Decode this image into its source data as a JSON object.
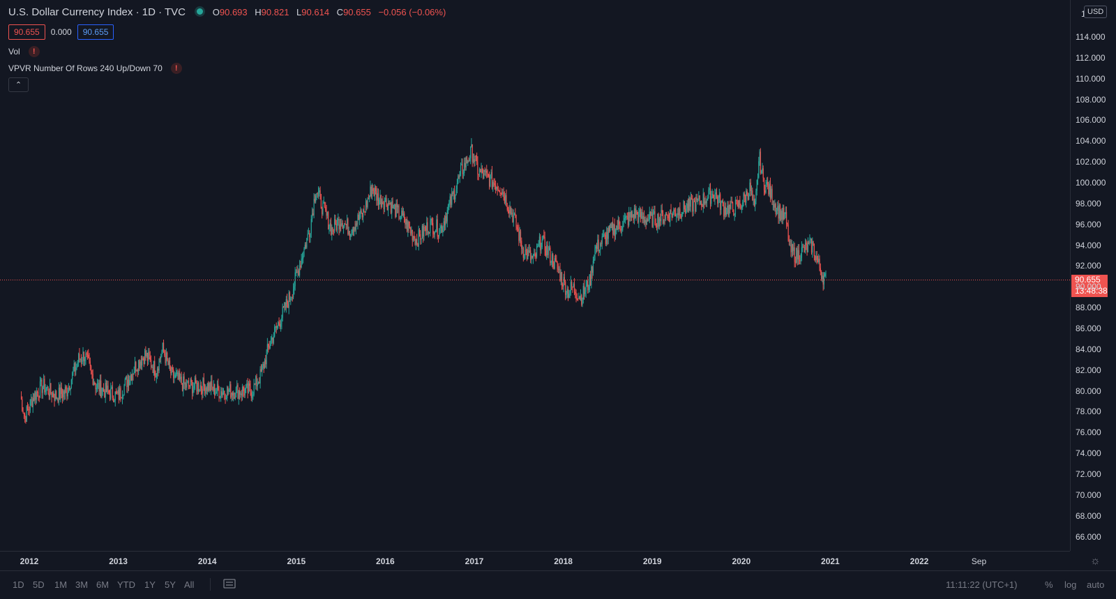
{
  "header": {
    "title": "U.S. Dollar Currency Index · 1D · TVC",
    "ohlc": {
      "o_label": "O",
      "o_value": "90.693",
      "h_label": "H",
      "h_value": "90.821",
      "l_label": "L",
      "l_value": "90.614",
      "c_label": "C",
      "c_value": "90.655",
      "change": "−0.056 (−0.06%)"
    },
    "bid": "90.655",
    "spread": "0.000",
    "ask": "90.655",
    "indicator_vol": "Vol",
    "indicator_vpvr": "VPVR Number Of Rows 240 Up/Down 70",
    "warn_symbol": "!",
    "collapse_symbol": "⌃"
  },
  "price_axis": {
    "currency": "USD",
    "top_partial": "1",
    "ticks": [
      "114.000",
      "112.000",
      "110.000",
      "108.000",
      "106.000",
      "104.000",
      "102.000",
      "100.000",
      "98.000",
      "96.000",
      "94.000",
      "92.000",
      "90.000",
      "88.000",
      "86.000",
      "84.000",
      "82.000",
      "80.000",
      "78.000",
      "76.000",
      "74.000",
      "72.000",
      "70.000",
      "68.000",
      "66.000"
    ],
    "last_price": "90.655",
    "countdown": "13:48:38"
  },
  "time_axis": {
    "labels": [
      "2012",
      "2013",
      "2014",
      "2015",
      "2016",
      "2017",
      "2018",
      "2019",
      "2020",
      "2021",
      "2022",
      "Sep"
    ]
  },
  "bottom_bar": {
    "timeframes": [
      "1D",
      "5D",
      "1M",
      "3M",
      "6M",
      "YTD",
      "1Y",
      "5Y",
      "All"
    ],
    "clock": "11:11:22 (UTC+1)",
    "percent": "%",
    "log": "log",
    "auto": "auto"
  },
  "colors": {
    "background": "#131722",
    "up": "#26a69a",
    "down": "#ef5350",
    "text": "#d1d4dc",
    "grid": "#2a2e39"
  },
  "chart_data": {
    "type": "line",
    "title": "U.S. Dollar Currency Index · 1D · TVC",
    "xlabel": "",
    "ylabel": "",
    "grid": false,
    "legend": "top-left",
    "ylim": [
      65.0,
      116.0
    ],
    "xlim": [
      2011.9,
      2023.0
    ],
    "series": [
      {
        "name": "U.S. Dollar Currency Index",
        "x": [
          2011.9,
          2011.95,
          2012.05,
          2012.15,
          2012.3,
          2012.42,
          2012.55,
          2012.62,
          2012.75,
          2012.85,
          2013.0,
          2013.1,
          2013.2,
          2013.3,
          2013.42,
          2013.5,
          2013.6,
          2013.75,
          2013.85,
          2014.0,
          2014.1,
          2014.2,
          2014.35,
          2014.5,
          2014.6,
          2014.7,
          2014.85,
          2014.95,
          2015.05,
          2015.15,
          2015.22,
          2015.3,
          2015.4,
          2015.5,
          2015.6,
          2015.75,
          2015.85,
          2015.92,
          2016.05,
          2016.2,
          2016.35,
          2016.5,
          2016.62,
          2016.75,
          2016.85,
          2016.97,
          2017.05,
          2017.15,
          2017.3,
          2017.45,
          2017.55,
          2017.67,
          2017.75,
          2017.85,
          2017.95,
          2018.05,
          2018.1,
          2018.2,
          2018.3,
          2018.35,
          2018.45,
          2018.55,
          2018.65,
          2018.8,
          2018.92,
          2019.05,
          2019.2,
          2019.35,
          2019.5,
          2019.6,
          2019.7,
          2019.8,
          2019.9,
          2020.0,
          2020.1,
          2020.15,
          2020.2,
          2020.25,
          2020.3,
          2020.4,
          2020.5,
          2020.55,
          2020.62,
          2020.7,
          2020.8,
          2020.85,
          2020.92,
          2020.95
        ],
        "y": [
          79.5,
          77.5,
          79.5,
          80.5,
          79.5,
          80.0,
          83.0,
          83.5,
          80.5,
          80.0,
          79.5,
          81.0,
          82.5,
          83.5,
          82.0,
          84.0,
          81.5,
          80.5,
          80.5,
          80.5,
          80.0,
          80.0,
          80.0,
          80.0,
          81.5,
          84.5,
          87.5,
          89.5,
          92.5,
          95.5,
          99.5,
          97.5,
          95.5,
          96.5,
          95.5,
          97.0,
          99.5,
          98.5,
          98.0,
          96.5,
          94.5,
          96.0,
          95.5,
          98.5,
          101.0,
          103.0,
          101.0,
          100.5,
          99.5,
          96.5,
          93.5,
          92.5,
          94.5,
          93.0,
          91.5,
          89.5,
          90.0,
          89.0,
          90.5,
          93.5,
          94.5,
          95.5,
          96.0,
          97.0,
          96.5,
          96.5,
          97.0,
          97.5,
          98.0,
          98.5,
          99.0,
          97.5,
          97.5,
          98.0,
          99.5,
          97.0,
          102.5,
          100.0,
          99.5,
          97.5,
          96.5,
          93.5,
          93.0,
          93.5,
          94.0,
          92.5,
          91.0,
          90.655
        ]
      }
    ]
  }
}
